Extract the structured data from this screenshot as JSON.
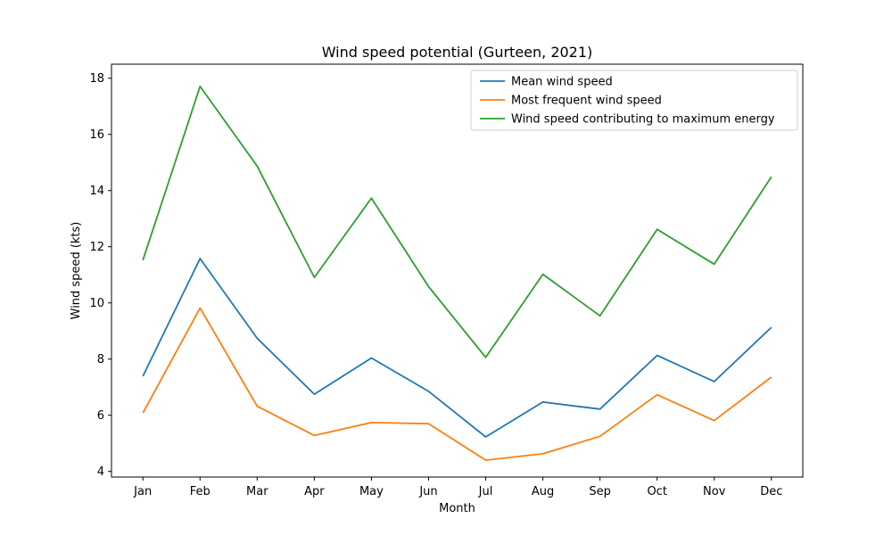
{
  "chart_data": {
    "type": "line",
    "title": "Wind speed potential (Gurteen, 2021)",
    "xlabel": "Month",
    "ylabel": "Wind speed (kts)",
    "categories": [
      "Jan",
      "Feb",
      "Mar",
      "Apr",
      "May",
      "Jun",
      "Jul",
      "Aug",
      "Sep",
      "Oct",
      "Nov",
      "Dec"
    ],
    "ylim": [
      3.8,
      18.5
    ],
    "yticks": [
      4,
      6,
      8,
      10,
      12,
      14,
      16,
      18
    ],
    "grid": false,
    "legend_position": "top-right",
    "series": [
      {
        "name": "Mean wind speed",
        "color": "#1f77b4",
        "values": [
          7.39,
          11.58,
          8.74,
          6.75,
          8.04,
          6.85,
          5.23,
          6.47,
          6.22,
          8.13,
          7.2,
          9.13
        ]
      },
      {
        "name": "Most frequent wind speed",
        "color": "#ff7f0e",
        "values": [
          6.08,
          9.82,
          6.32,
          5.28,
          5.74,
          5.7,
          4.4,
          4.63,
          5.25,
          6.73,
          5.81,
          7.36
        ]
      },
      {
        "name": "Wind speed contributing to maximum energy",
        "color": "#2ca02c",
        "values": [
          11.52,
          17.71,
          14.87,
          10.91,
          13.73,
          10.58,
          8.06,
          11.02,
          9.54,
          12.62,
          11.38,
          14.49
        ]
      }
    ]
  }
}
